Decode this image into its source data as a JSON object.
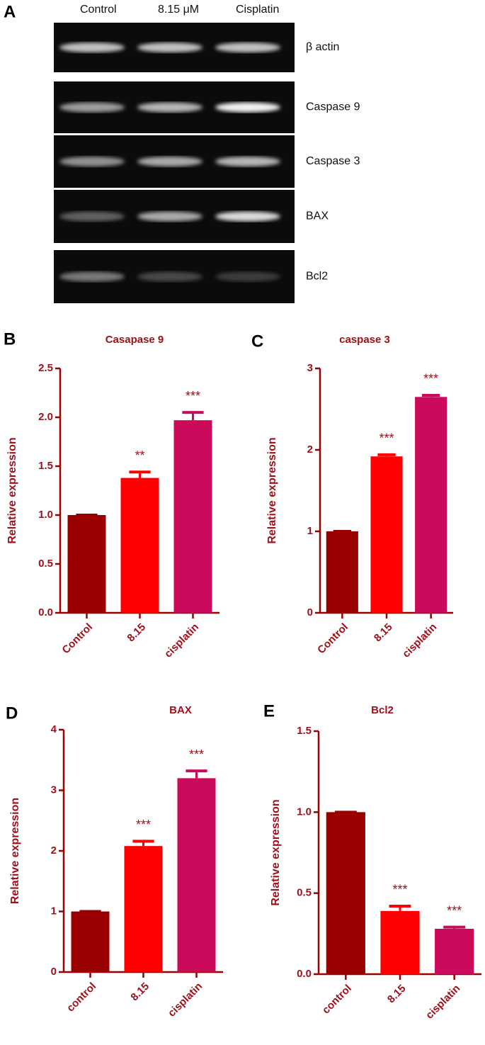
{
  "gel": {
    "panel": "A",
    "lanes": [
      "Control",
      "8.15 μM",
      "Cisplatin"
    ],
    "bands": [
      "β actin",
      "Caspase 9",
      "Caspase 3",
      "BAX",
      "Bcl2"
    ]
  },
  "chart_data": [
    {
      "type": "bar",
      "panel": "B",
      "title": "Casapase 9",
      "y_label": "Relative expression",
      "categories": [
        "Control",
        "8.15",
        "cisplatin"
      ],
      "values": [
        1.0,
        1.38,
        1.97
      ],
      "errors": [
        0,
        0.06,
        0.08
      ],
      "annotations": [
        null,
        "**",
        "***"
      ],
      "colors": [
        "#9b0000",
        "#ff0000",
        "#cc0a5c"
      ],
      "ylim": [
        0,
        2.5
      ],
      "yticks": [
        {
          "value": 0,
          "label": "0.0"
        },
        0.5,
        {
          "value": 1,
          "label": "1.0"
        },
        1.5,
        {
          "value": 2,
          "label": "2.0"
        },
        2.5
      ]
    },
    {
      "type": "bar",
      "panel": "C",
      "title": "caspase 3",
      "y_label": "Relative expression",
      "categories": [
        "Control",
        "8.15",
        "cisplatin"
      ],
      "values": [
        1.0,
        1.92,
        2.65
      ],
      "errors": [
        0,
        0.02,
        0.02
      ],
      "annotations": [
        null,
        "***",
        "***"
      ],
      "colors": [
        "#9b0000",
        "#ff0000",
        "#cc0a5c"
      ],
      "ylim": [
        0,
        3
      ],
      "yticks": [
        0,
        1,
        2,
        3
      ]
    },
    {
      "type": "bar",
      "panel": "D",
      "title": "BAX",
      "y_label": "Relative expression",
      "categories": [
        "control",
        "8.15",
        "cisplatin"
      ],
      "values": [
        1.0,
        2.08,
        3.2
      ],
      "errors": [
        0,
        0.08,
        0.12
      ],
      "annotations": [
        null,
        "***",
        "***"
      ],
      "colors": [
        "#9b0000",
        "#ff0000",
        "#cc0a5c"
      ],
      "ylim": [
        0,
        4
      ],
      "yticks": [
        0,
        1,
        2,
        3,
        4
      ]
    },
    {
      "type": "bar",
      "panel": "E",
      "title": "Bcl2",
      "y_label": "Relative expression",
      "categories": [
        "control",
        "8.15",
        "cisplatin"
      ],
      "values": [
        1.0,
        0.39,
        0.28
      ],
      "errors": [
        0,
        0.03,
        0.01
      ],
      "annotations": [
        null,
        "***",
        "***"
      ],
      "colors": [
        "#9b0000",
        "#ff0000",
        "#cc0a5c"
      ],
      "ylim": [
        0,
        1.5
      ],
      "yticks": [
        {
          "value": 0,
          "label": "0.0"
        },
        0.5,
        {
          "value": 1,
          "label": "1.0"
        },
        1.5
      ]
    }
  ]
}
